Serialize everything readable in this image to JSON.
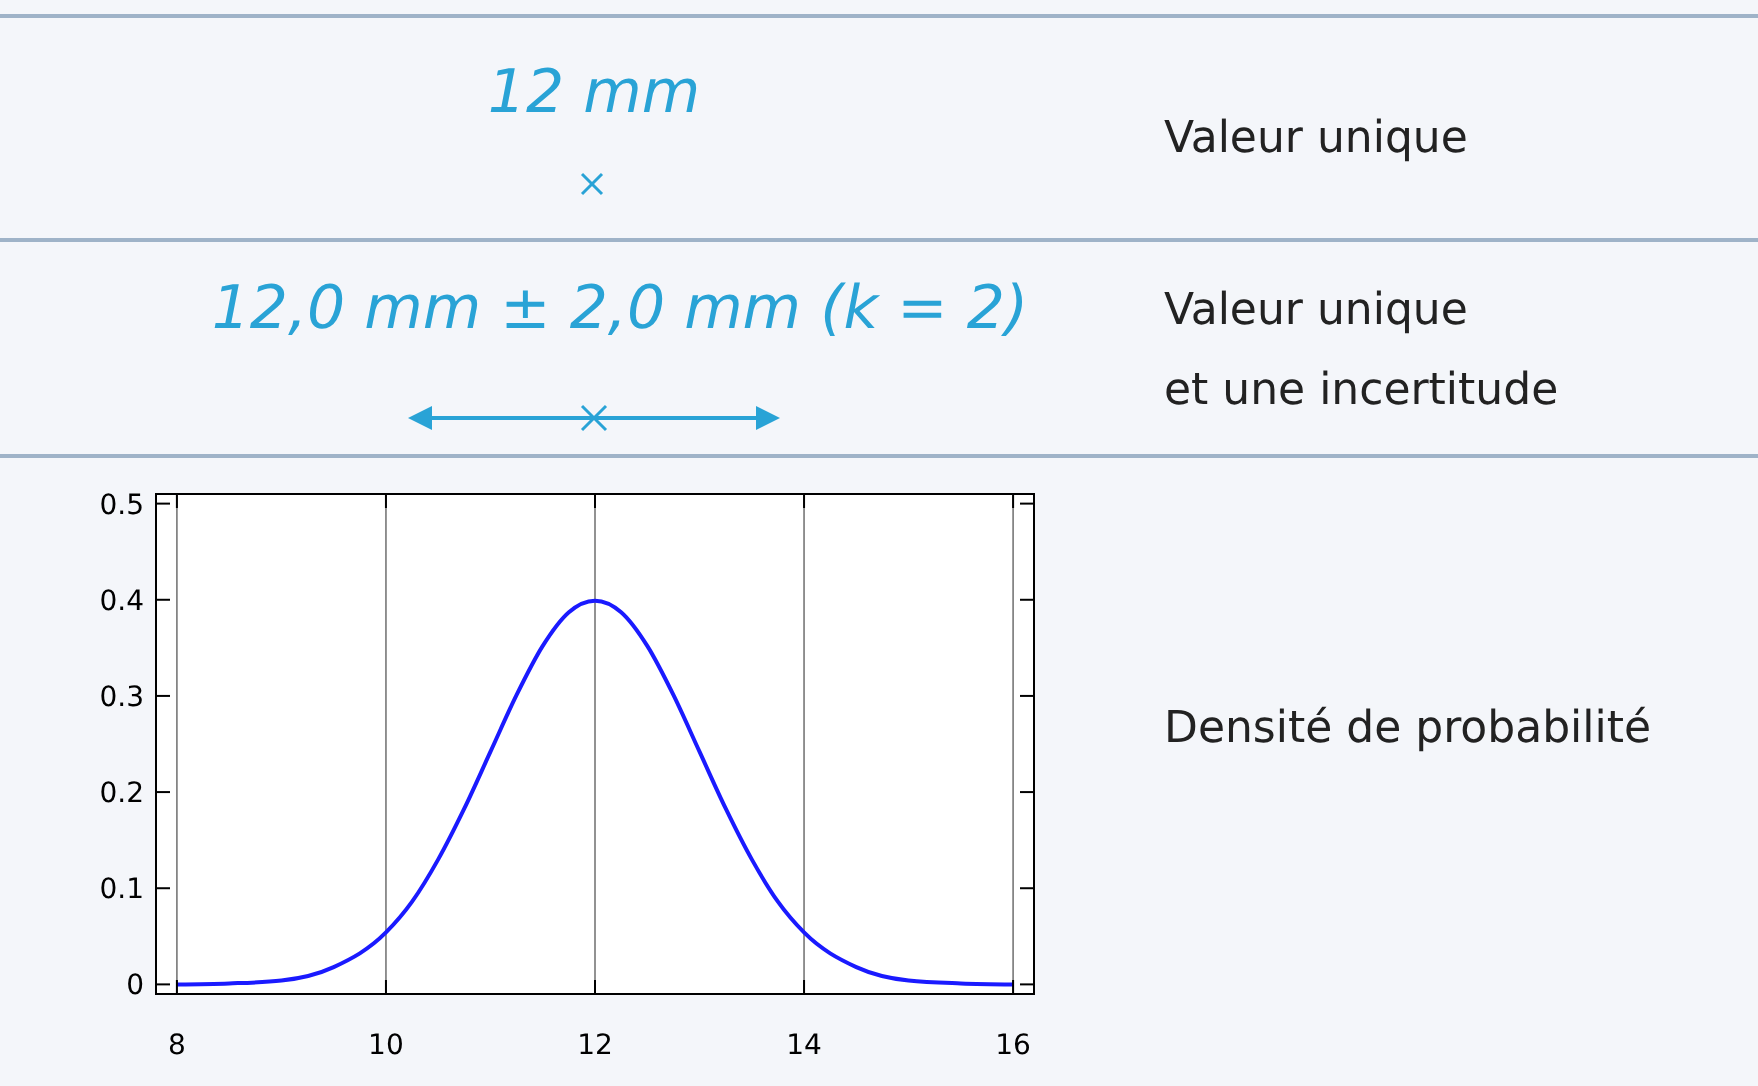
{
  "chart_data": {
    "type": "line",
    "x": [
      8,
      8.5,
      9,
      9.5,
      10,
      10.25,
      10.5,
      10.75,
      11,
      11.25,
      11.5,
      11.75,
      12,
      12.25,
      12.5,
      12.75,
      13,
      13.25,
      13.5,
      13.75,
      14,
      14.5,
      15,
      15.5,
      16
    ],
    "series": [
      {
        "color": "#1a1aff",
        "values": [
          0,
          0.001,
          0.004,
          0.018,
          0.054,
          0.086,
          0.13,
          0.183,
          0.242,
          0.301,
          0.352,
          0.387,
          0.399,
          0.387,
          0.352,
          0.301,
          0.242,
          0.183,
          0.13,
          0.086,
          0.054,
          0.018,
          0.004,
          0.001,
          0
        ]
      }
    ],
    "xlim": [
      7.8,
      16.2
    ],
    "ylim": [
      -0.01,
      0.51
    ],
    "xticks": [
      8,
      10,
      12,
      14,
      16
    ],
    "yticks": [
      0,
      0.1,
      0.2,
      0.3,
      0.4,
      0.5
    ],
    "grid": "x",
    "marker": "none",
    "line_style": "solid",
    "annotations": [
      "12 mm",
      "Valeur unique",
      "12,0 mm ± 2,0 mm (k = 2)",
      "Valeur unique\net une incertitude",
      "Densité de probabilité"
    ]
  }
}
